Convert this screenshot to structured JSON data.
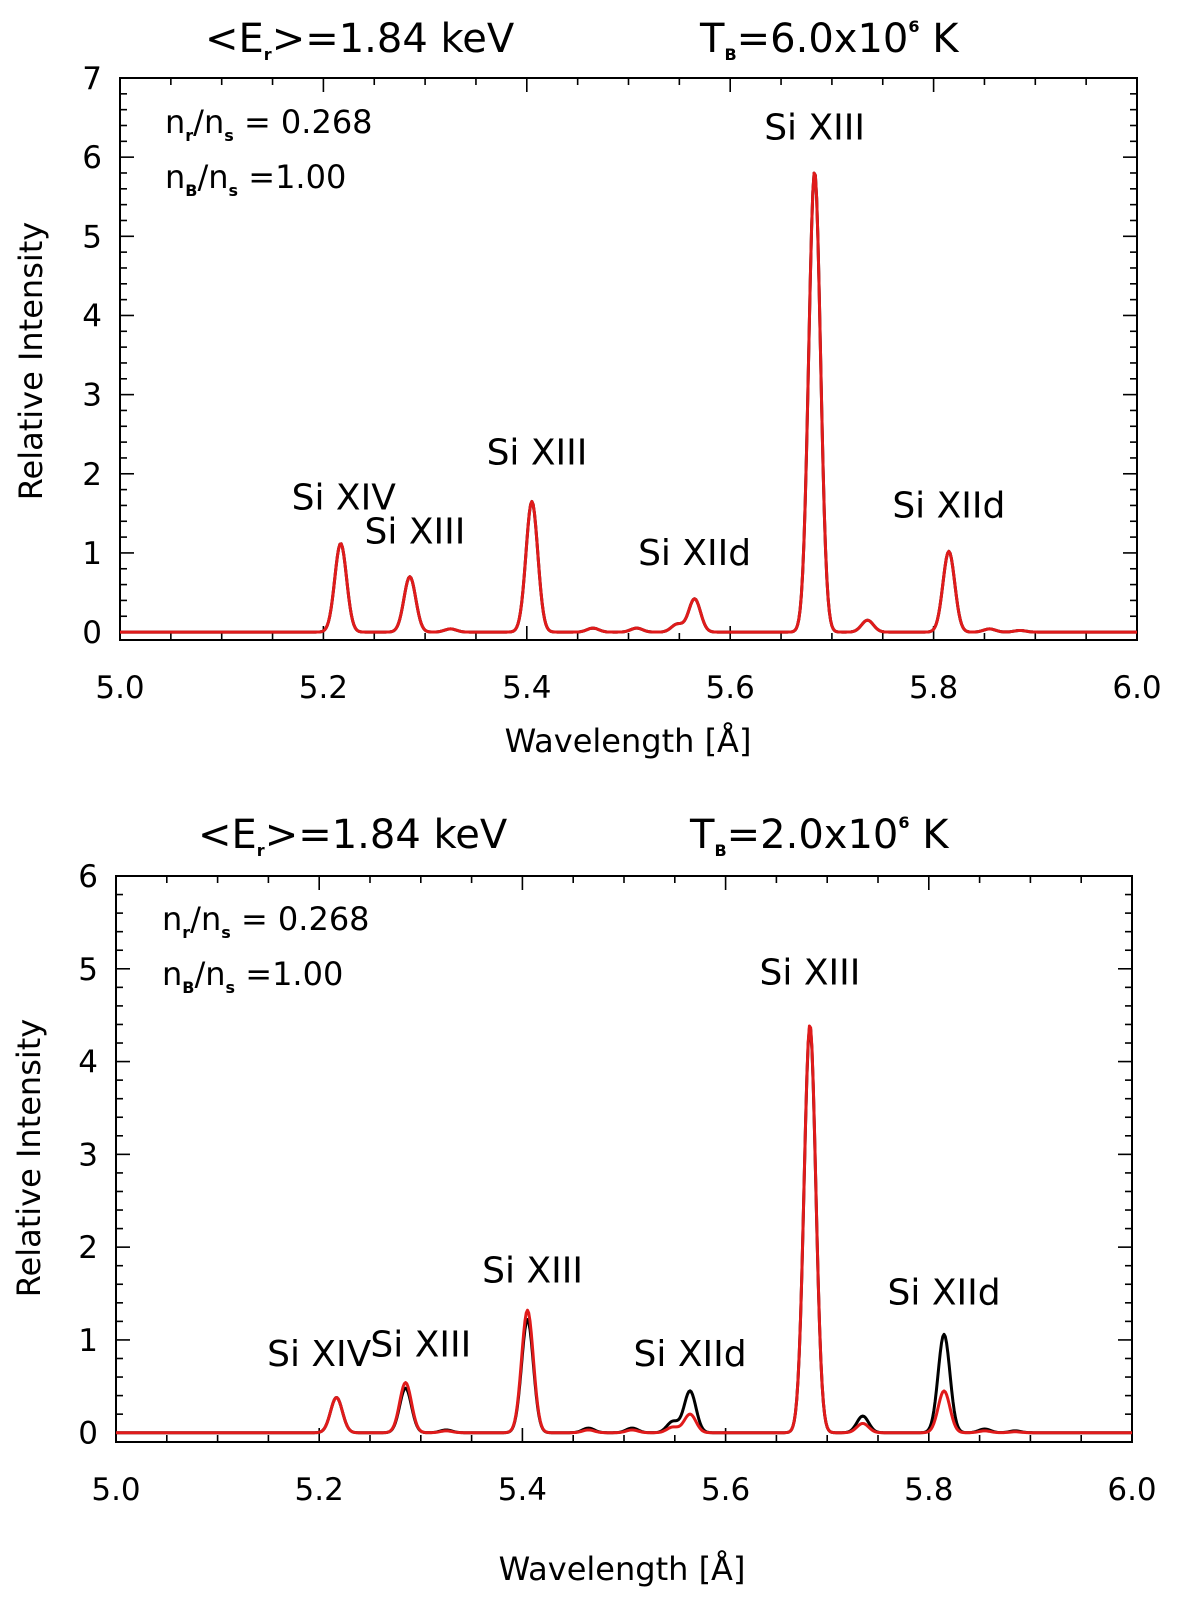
{
  "chart_data": [
    {
      "type": "line",
      "title_left": {
        "pre": "<E",
        "sub": "r",
        "post": ">=1.84 keV"
      },
      "title_right": {
        "pre": "T",
        "sub": "B",
        "mid": "=6.0x10",
        "sup": "6",
        "post": " K"
      },
      "annotations": [
        {
          "a": "n",
          "as": "r",
          "b": "/n",
          "bs": "s",
          "rest": " = 0.268"
        },
        {
          "a": "n",
          "as": "B",
          "b": "/n",
          "bs": "s",
          "rest": " =1.00"
        }
      ],
      "xlabel": "Wavelength [Å]",
      "ylabel": "Relative Intensity",
      "xlim": [
        5.0,
        6.0
      ],
      "ylim": [
        -0.1,
        7.0
      ],
      "xticks": [
        "5.0",
        "5.2",
        "5.4",
        "5.6",
        "5.8",
        "6.0"
      ],
      "yticks": [
        "0",
        "1",
        "2",
        "3",
        "4",
        "5",
        "6",
        "7"
      ],
      "peak_labels": [
        {
          "text": "Si XIV",
          "x": 5.22,
          "y": 1.55
        },
        {
          "text": "Si XIII",
          "x": 5.29,
          "y": 1.12
        },
        {
          "text": "Si XIII",
          "x": 5.41,
          "y": 2.12
        },
        {
          "text": "Si XIId",
          "x": 5.565,
          "y": 0.85
        },
        {
          "text": "Si XIII",
          "x": 5.683,
          "y": 6.22
        },
        {
          "text": "Si XIId",
          "x": 5.815,
          "y": 1.45
        }
      ],
      "series": [
        {
          "name": "black",
          "color": "#000000",
          "peaks": [
            [
              5.217,
              1.12
            ],
            [
              5.285,
              0.7
            ],
            [
              5.325,
              0.04
            ],
            [
              5.405,
              1.65
            ],
            [
              5.465,
              0.05
            ],
            [
              5.508,
              0.05
            ],
            [
              5.548,
              0.1
            ],
            [
              5.565,
              0.42
            ],
            [
              5.683,
              5.82
            ],
            [
              5.735,
              0.15
            ],
            [
              5.815,
              1.02
            ],
            [
              5.855,
              0.04
            ],
            [
              5.885,
              0.02
            ]
          ]
        },
        {
          "name": "red",
          "color": "#e01b1b",
          "peaks": [
            [
              5.217,
              1.12
            ],
            [
              5.285,
              0.7
            ],
            [
              5.325,
              0.04
            ],
            [
              5.405,
              1.65
            ],
            [
              5.465,
              0.05
            ],
            [
              5.508,
              0.05
            ],
            [
              5.548,
              0.1
            ],
            [
              5.565,
              0.42
            ],
            [
              5.683,
              5.82
            ],
            [
              5.735,
              0.15
            ],
            [
              5.815,
              1.02
            ],
            [
              5.855,
              0.04
            ],
            [
              5.885,
              0.02
            ]
          ]
        }
      ]
    },
    {
      "type": "line",
      "title_left": {
        "pre": "<E",
        "sub": "r",
        "post": ">=1.84 keV"
      },
      "title_right": {
        "pre": "T",
        "sub": "B",
        "mid": "=2.0x10",
        "sup": "6",
        "post": " K"
      },
      "annotations": [
        {
          "a": "n",
          "as": "r",
          "b": "/n",
          "bs": "s",
          "rest": " = 0.268"
        },
        {
          "a": "n",
          "as": "B",
          "b": "/n",
          "bs": "s",
          "rest": " =1.00"
        }
      ],
      "xlabel": "Wavelength [Å]",
      "ylabel": "Relative Intensity",
      "xlim": [
        5.0,
        6.0
      ],
      "ylim": [
        -0.1,
        6.0
      ],
      "xticks": [
        "5.0",
        "5.2",
        "5.4",
        "5.6",
        "5.8",
        "6.0"
      ],
      "yticks": [
        "0",
        "1",
        "2",
        "3",
        "4",
        "5",
        "6"
      ],
      "peak_labels": [
        {
          "text": "Si XIV",
          "x": 5.2,
          "y": 0.72
        },
        {
          "text": "Si XIII",
          "x": 5.3,
          "y": 0.82
        },
        {
          "text": "Si XIII",
          "x": 5.41,
          "y": 1.62
        },
        {
          "text": "Si XIId",
          "x": 5.565,
          "y": 0.72
        },
        {
          "text": "Si XIII",
          "x": 5.683,
          "y": 4.83
        },
        {
          "text": "Si XIId",
          "x": 5.815,
          "y": 1.38
        }
      ],
      "series": [
        {
          "name": "black",
          "color": "#000000",
          "peaks": [
            [
              5.217,
              0.38
            ],
            [
              5.285,
              0.48
            ],
            [
              5.325,
              0.03
            ],
            [
              5.405,
              1.22
            ],
            [
              5.465,
              0.05
            ],
            [
              5.508,
              0.05
            ],
            [
              5.548,
              0.12
            ],
            [
              5.565,
              0.45
            ],
            [
              5.683,
              4.38
            ],
            [
              5.735,
              0.18
            ],
            [
              5.815,
              1.06
            ],
            [
              5.855,
              0.04
            ],
            [
              5.885,
              0.02
            ]
          ]
        },
        {
          "name": "red",
          "color": "#e01b1b",
          "peaks": [
            [
              5.217,
              0.38
            ],
            [
              5.285,
              0.54
            ],
            [
              5.325,
              0.02
            ],
            [
              5.405,
              1.32
            ],
            [
              5.465,
              0.03
            ],
            [
              5.508,
              0.03
            ],
            [
              5.548,
              0.06
            ],
            [
              5.565,
              0.2
            ],
            [
              5.683,
              4.4
            ],
            [
              5.735,
              0.1
            ],
            [
              5.815,
              0.45
            ],
            [
              5.855,
              0.02
            ],
            [
              5.885,
              0.01
            ]
          ]
        }
      ]
    }
  ]
}
